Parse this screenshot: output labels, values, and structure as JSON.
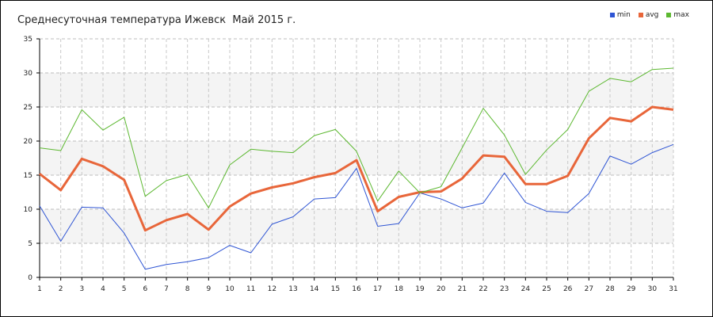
{
  "chart_data": {
    "type": "line",
    "title": "Среднесуточная температура Ижевск  Май 2015 г.",
    "x": [
      1,
      2,
      3,
      4,
      5,
      6,
      7,
      8,
      9,
      10,
      11,
      12,
      13,
      14,
      15,
      16,
      17,
      18,
      19,
      20,
      21,
      22,
      23,
      24,
      25,
      26,
      27,
      28,
      29,
      30,
      31
    ],
    "ylim": [
      0,
      35
    ],
    "yticks": [
      0,
      5,
      10,
      15,
      20,
      25,
      30,
      35
    ],
    "grid": true,
    "legend_position": "top-right",
    "series": [
      {
        "name": "min",
        "color": "#2f55d4",
        "values": [
          10.5,
          5.3,
          10.3,
          10.2,
          6.5,
          1.2,
          1.9,
          2.3,
          2.9,
          4.7,
          3.6,
          7.8,
          8.9,
          11.5,
          11.7,
          16.0,
          7.5,
          7.9,
          12.4,
          11.5,
          10.2,
          10.9,
          15.3,
          11.0,
          9.7,
          9.5,
          12.3,
          17.8,
          16.6,
          18.3,
          19.5
        ]
      },
      {
        "name": "avg",
        "color": "#e8663a",
        "values": [
          15.2,
          12.8,
          17.4,
          16.3,
          14.3,
          6.9,
          8.4,
          9.3,
          7.0,
          10.4,
          12.3,
          13.2,
          13.8,
          14.7,
          15.3,
          17.2,
          9.7,
          11.8,
          12.5,
          12.6,
          14.5,
          17.9,
          17.7,
          13.7,
          13.7,
          14.9,
          20.4,
          23.4,
          22.9,
          25.0,
          24.6
        ]
      },
      {
        "name": "max",
        "color": "#5cb830",
        "values": [
          19.0,
          18.6,
          24.6,
          21.6,
          23.5,
          11.9,
          14.2,
          15.1,
          10.2,
          16.5,
          18.8,
          18.5,
          18.3,
          20.8,
          21.7,
          18.5,
          11.2,
          15.6,
          12.4,
          13.3,
          19.0,
          24.8,
          20.9,
          15.1,
          18.7,
          21.7,
          27.3,
          29.2,
          28.7,
          30.5,
          30.7
        ]
      }
    ]
  }
}
